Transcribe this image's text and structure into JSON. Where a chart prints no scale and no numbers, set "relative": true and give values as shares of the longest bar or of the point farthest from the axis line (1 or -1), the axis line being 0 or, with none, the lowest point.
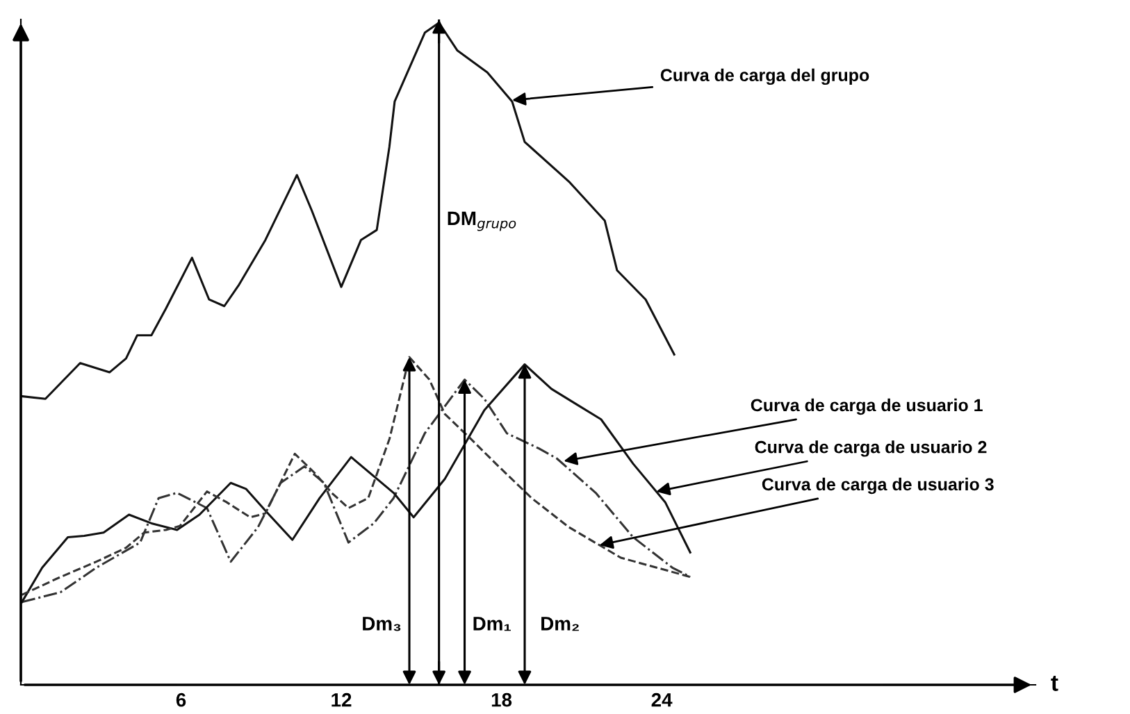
{
  "chart_data": {
    "type": "line",
    "relative": true,
    "xlabel": "t",
    "xlim": [
      0,
      38
    ],
    "xticks": [
      6,
      12,
      18,
      24
    ],
    "grid": false,
    "marker": "none",
    "series": [
      {
        "color": "#111111",
        "line_style": "solid",
        "x": [
          0,
          0.92,
          2.22,
          3.32,
          3.94,
          4.36,
          4.89,
          5.43,
          6.41,
          7.05,
          7.62,
          8.15,
          9.16,
          10.34,
          10.9,
          12.0,
          12.74,
          13.33,
          13.8,
          14.0,
          15.13,
          15.66,
          16.35,
          17.47,
          18.4,
          18.87,
          20.53,
          21.87,
          22.33,
          23.4,
          24.47
        ],
        "values": [
          0.436,
          0.432,
          0.486,
          0.472,
          0.493,
          0.528,
          0.528,
          0.568,
          0.645,
          0.582,
          0.572,
          0.603,
          0.672,
          0.77,
          0.716,
          0.601,
          0.672,
          0.687,
          0.812,
          0.881,
          0.985,
          1.0,
          0.958,
          0.925,
          0.881,
          0.82,
          0.76,
          0.701,
          0.626,
          0.582,
          0.499
        ]
      },
      {
        "color": "#333333",
        "line_style": "dashdot",
        "x": [
          0.04,
          1.49,
          2.83,
          4.47,
          5.16,
          5.85,
          6.97,
          7.86,
          8.88,
          9.73,
          10.62,
          11.35,
          12.27,
          13.22,
          13.96,
          15.13,
          16.62,
          17.36,
          18.2,
          19.4,
          20.07,
          21.53,
          22.93,
          24.4,
          25.07
        ],
        "values": [
          0.125,
          0.14,
          0.177,
          0.215,
          0.282,
          0.29,
          0.267,
          0.186,
          0.238,
          0.305,
          0.33,
          0.305,
          0.215,
          0.244,
          0.282,
          0.38,
          0.461,
          0.432,
          0.38,
          0.357,
          0.342,
          0.29,
          0.223,
          0.177,
          0.163
        ]
      },
      {
        "color": "#111111",
        "line_style": "solid",
        "x": [
          0.04,
          0.8,
          1.76,
          2.37,
          3.1,
          4.05,
          4.89,
          5.85,
          6.69,
          7.86,
          8.43,
          9.16,
          10.17,
          11.19,
          12.37,
          13.96,
          14.71,
          15.88,
          17.36,
          18.87,
          19.87,
          20.8,
          21.73,
          22.93,
          24.13,
          25.07
        ],
        "values": [
          0.125,
          0.177,
          0.223,
          0.225,
          0.23,
          0.257,
          0.244,
          0.234,
          0.257,
          0.305,
          0.296,
          0.263,
          0.219,
          0.282,
          0.344,
          0.29,
          0.253,
          0.311,
          0.415,
          0.484,
          0.447,
          0.424,
          0.401,
          0.334,
          0.276,
          0.2
        ]
      },
      {
        "color": "#333333",
        "line_style": "dashed",
        "x": [
          0.04,
          1.49,
          2.83,
          3.94,
          4.62,
          5.43,
          5.96,
          6.97,
          7.7,
          8.59,
          9.16,
          10.26,
          11.03,
          11.64,
          12.27,
          13.01,
          13.81,
          14.55,
          15.3,
          15.88,
          16.84,
          17.79,
          19.13,
          20.53,
          22.47,
          25.07
        ],
        "values": [
          0.136,
          0.163,
          0.186,
          0.207,
          0.23,
          0.234,
          0.24,
          0.292,
          0.276,
          0.253,
          0.259,
          0.349,
          0.319,
          0.29,
          0.267,
          0.282,
          0.372,
          0.495,
          0.461,
          0.409,
          0.372,
          0.334,
          0.282,
          0.238,
          0.192,
          0.163
        ]
      }
    ],
    "annotations": [
      {
        "text": "Curva de carga del grupo",
        "x": 18.4,
        "y": 0.883
      },
      {
        "text": "Curva de carga de usuario 1",
        "x": 20.33,
        "y": 0.338
      },
      {
        "text": "Curva de carga de usuario 2",
        "x": 23.8,
        "y": 0.292
      },
      {
        "text": "Curva de carga de usuario 3",
        "x": 21.67,
        "y": 0.211
      },
      "Dm₃",
      "DM$_{grupo}$",
      "Dm₁",
      "Dm₂"
    ],
    "ref_lines": [
      {
        "axis": "x",
        "value": 15.66
      }
    ]
  }
}
